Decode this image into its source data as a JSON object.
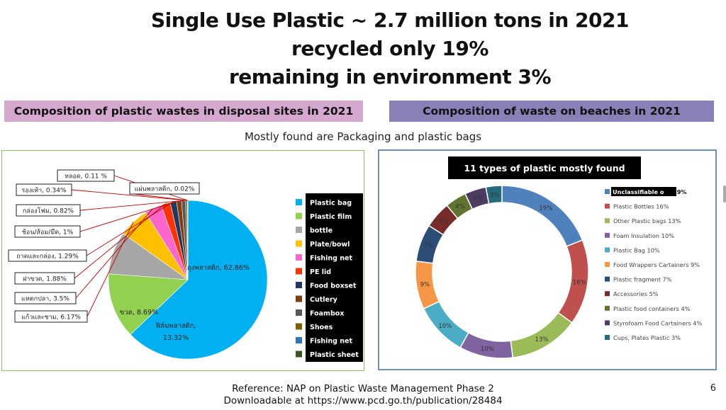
{
  "slide": {
    "title_line1": "Single Use Plastic ~ 2.7 million tons in 2021",
    "title_line2": "recycled only 19%",
    "title_line3": "remaining in environment 3%",
    "header_left": "Composition of plastic wastes in disposal sites in 2021",
    "header_right": "Composition of waste on beaches in 2021",
    "subtitle": "Mostly found are Packaging and plastic bags",
    "footer_line1": "Reference: NAP on Plastic Waste Management Phase 2",
    "footer_line2": "Downloadable at https://www.pcd.go.th/publication/28484",
    "page_number": "6"
  },
  "chart_data": [
    {
      "type": "pie",
      "title": "",
      "slices": [
        {
          "label": "ถุงพลาสติก, 62.86%",
          "value": 62.86,
          "color": "#00b0f0"
        },
        {
          "label": "ฟิล์มพลาสติก, 13.32%",
          "value": 13.32,
          "color": "#92d050"
        },
        {
          "label": "ขวด, 8.69%",
          "value": 8.69,
          "color": "#a6a6a6"
        },
        {
          "label": "แก้วและชาม, 6.17%",
          "value": 6.17,
          "color": "#ffc000"
        },
        {
          "label": "แหตกปลา, 3.5%",
          "value": 3.5,
          "color": "#ff66cc"
        },
        {
          "label": "ฝาขวด, 1.88%",
          "value": 1.88,
          "color": "#ff3300"
        },
        {
          "label": "ถาดและกล่อง, 1.29%",
          "value": 1.29,
          "color": "#1f3864"
        },
        {
          "label": "ช้อน/ส้อม/มีด, 1%",
          "value": 1.0,
          "color": "#843c0c"
        },
        {
          "label": "กล่องโฟม, 0.82%",
          "value": 0.82,
          "color": "#595959"
        },
        {
          "label": "รองเท้า, 0.34%",
          "value": 0.34,
          "color": "#7f6000"
        },
        {
          "label": "หลอด, 0.11 %",
          "value": 0.11,
          "color": "#2e75b6"
        },
        {
          "label": "แผ่นพลาสติก, 0.02%",
          "value": 0.02,
          "color": "#375623"
        }
      ],
      "legend": [
        {
          "label": "Plastic bag",
          "color": "#00b0f0"
        },
        {
          "label": "Plastic film",
          "color": "#92d050"
        },
        {
          "label": "bottle",
          "color": "#a6a6a6"
        },
        {
          "label": "Plate/bowl",
          "color": "#ffc000"
        },
        {
          "label": "Fishing net",
          "color": "#ff66cc"
        },
        {
          "label": "PE lid",
          "color": "#ff3300"
        },
        {
          "label": "Food boxset",
          "color": "#1f3864"
        },
        {
          "label": "Cutlery",
          "color": "#843c0c"
        },
        {
          "label": "Foambox",
          "color": "#595959"
        },
        {
          "label": "Shoes",
          "color": "#7f6000"
        },
        {
          "label": "Fishing net",
          "color": "#2e75b6"
        },
        {
          "label": "Plastic sheet",
          "color": "#375623"
        }
      ],
      "legend_placement": "right"
    },
    {
      "type": "pie",
      "title": "11 types of plastic mostly found",
      "donut": true,
      "slices": [
        {
          "label": "Unclassifiable o",
          "value_label": "19%",
          "value": 19,
          "color": "#4f81bd"
        },
        {
          "label": "Plastic Bottles 16%",
          "value_label": "16%",
          "value": 16,
          "color": "#c0504d"
        },
        {
          "label": "Other Plastic bags 13%",
          "value_label": "13%",
          "value": 13,
          "color": "#9bbb59"
        },
        {
          "label": "Foam Insulation 10%",
          "value_label": "10%",
          "value": 10,
          "color": "#8064a2"
        },
        {
          "label": "Plastic Bag 10%",
          "value_label": "10%",
          "value": 10,
          "color": "#4bacc6"
        },
        {
          "label": "Food Wrappers Cartainers 9%",
          "value_label": "9%",
          "value": 9,
          "color": "#f79646"
        },
        {
          "label": "Plastic fragment 7%",
          "value_label": "7%",
          "value": 7,
          "color": "#2c4d75"
        },
        {
          "label": "Accessories 5%",
          "value_label": "5%",
          "value": 5,
          "color": "#772c2a"
        },
        {
          "label": "Plastic food containers 4%",
          "value_label": "4%",
          "value": 4,
          "color": "#5f7530"
        },
        {
          "label": "Styrofoam Food Cartainers 4%",
          "value_label": "4%",
          "value": 4,
          "color": "#4d3b62"
        },
        {
          "label": "Cups, Plates Plastic 3%",
          "value_label": "3%",
          "value": 3,
          "color": "#276a7c"
        }
      ],
      "legend_placement": "right"
    }
  ]
}
